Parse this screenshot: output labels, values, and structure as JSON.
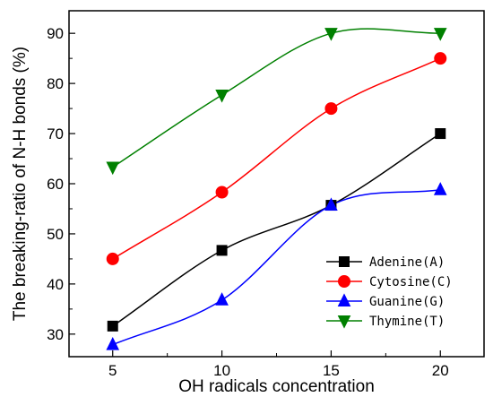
{
  "chart_data": {
    "type": "line",
    "xlabel": "OH radicals concentration",
    "ylabel": "The breaking-ratio of N-H bonds (%)",
    "x": [
      5,
      10,
      15,
      20
    ],
    "xticks": [
      5,
      10,
      15,
      20
    ],
    "yticks": [
      30,
      40,
      50,
      60,
      70,
      80,
      90
    ],
    "xlim": [
      3,
      22
    ],
    "ylim": [
      25.5,
      94.5
    ],
    "grid": false,
    "legend_position": "bottom-right",
    "series": [
      {
        "name": "Adenine(A)",
        "values": [
          31.6,
          46.7,
          55.7,
          70.0
        ],
        "color": "#000000",
        "marker": "square"
      },
      {
        "name": "Cytosine(C)",
        "values": [
          45.0,
          58.3,
          75.0,
          85.0
        ],
        "color": "#ff0000",
        "marker": "circle"
      },
      {
        "name": "Guanine(G)",
        "values": [
          27.9,
          36.8,
          55.7,
          58.8
        ],
        "color": "#0000ff",
        "marker": "triangle-up"
      },
      {
        "name": "Thymine(T)",
        "values": [
          63.3,
          77.7,
          90.0,
          90.0
        ],
        "color": "#008000",
        "marker": "triangle-down"
      }
    ]
  }
}
